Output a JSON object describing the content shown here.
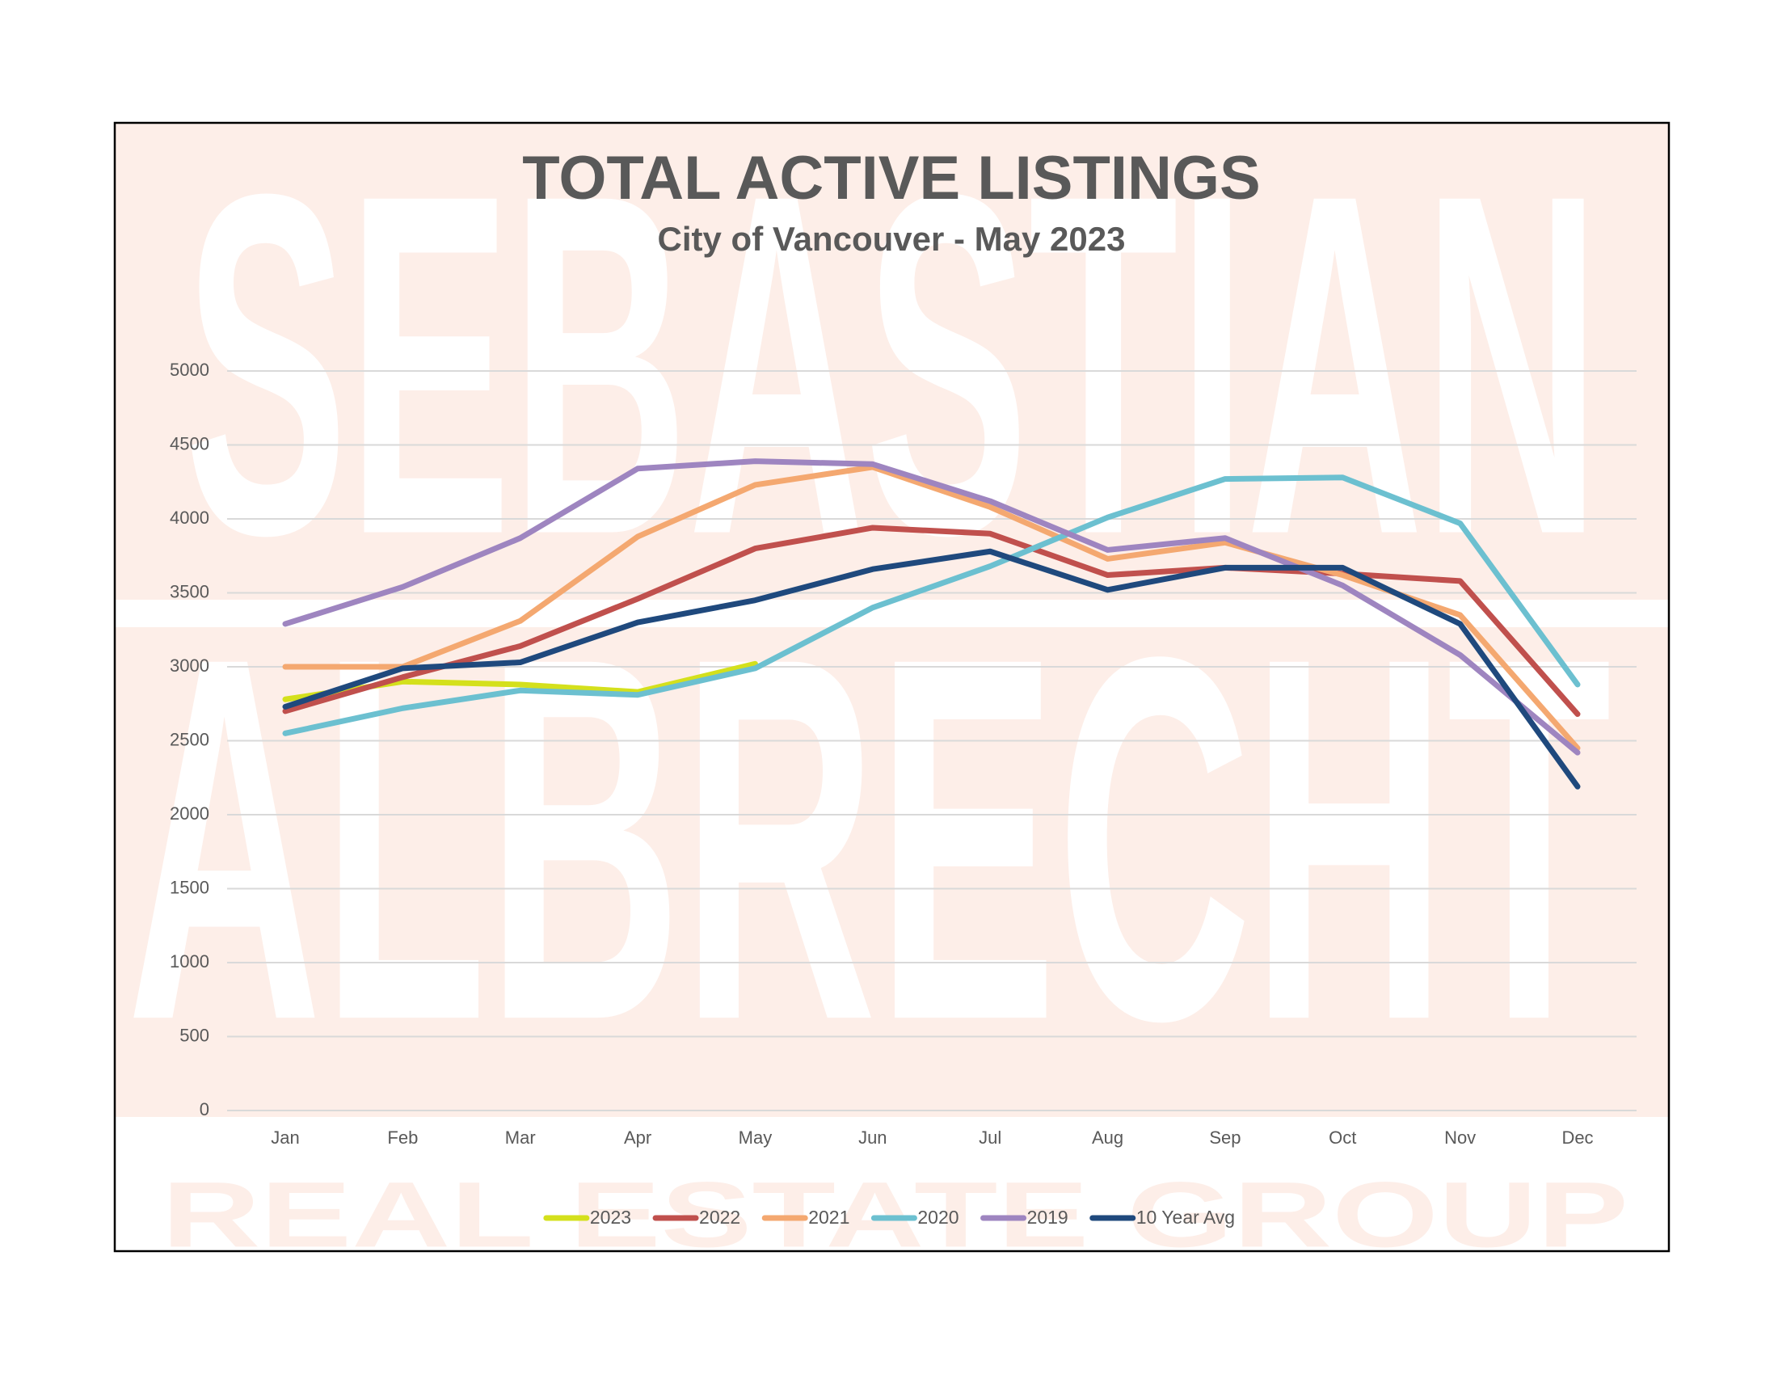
{
  "chart_data": {
    "type": "line",
    "title": "TOTAL ACTIVE LISTINGS",
    "subtitle": "City of Vancouver - May 2023",
    "watermark": {
      "line1": "SEBASTIAN",
      "line2": "ALBRECHT",
      "line3": "REAL ESTATE GROUP"
    },
    "categories": [
      "Jan",
      "Feb",
      "Mar",
      "Apr",
      "May",
      "Jun",
      "Jul",
      "Aug",
      "Sep",
      "Oct",
      "Nov",
      "Dec"
    ],
    "series": [
      {
        "name": "2023",
        "color": "#d4e01c",
        "values": [
          2780,
          2900,
          2880,
          2830,
          3020,
          null,
          null,
          null,
          null,
          null,
          null,
          null
        ]
      },
      {
        "name": "2022",
        "color": "#c0504d",
        "values": [
          2700,
          2930,
          3140,
          3460,
          3800,
          3940,
          3900,
          3620,
          3670,
          3630,
          3580,
          2680
        ]
      },
      {
        "name": "2021",
        "color": "#f4a870",
        "values": [
          3000,
          3000,
          3310,
          3880,
          4230,
          4350,
          4080,
          3730,
          3840,
          3620,
          3350,
          2450
        ]
      },
      {
        "name": "2020",
        "color": "#6cc0d0",
        "values": [
          2550,
          2720,
          2840,
          2810,
          2990,
          3400,
          3680,
          4010,
          4270,
          4280,
          3970,
          2880
        ]
      },
      {
        "name": "2019",
        "color": "#9e85c0",
        "values": [
          3290,
          3540,
          3870,
          4340,
          4390,
          4370,
          4120,
          3790,
          3870,
          3550,
          3080,
          2420
        ]
      },
      {
        "name": "10 Year Avg",
        "color": "#1f497d",
        "values": [
          2730,
          2990,
          3030,
          3300,
          3450,
          3660,
          3780,
          3520,
          3670,
          3670,
          3290,
          2190
        ]
      }
    ],
    "ylim": [
      0,
      5000
    ],
    "yticks": [
      0,
      500,
      1000,
      1500,
      2000,
      2500,
      3000,
      3500,
      4000,
      4500,
      5000
    ],
    "grid": true,
    "legend": "bottom"
  }
}
